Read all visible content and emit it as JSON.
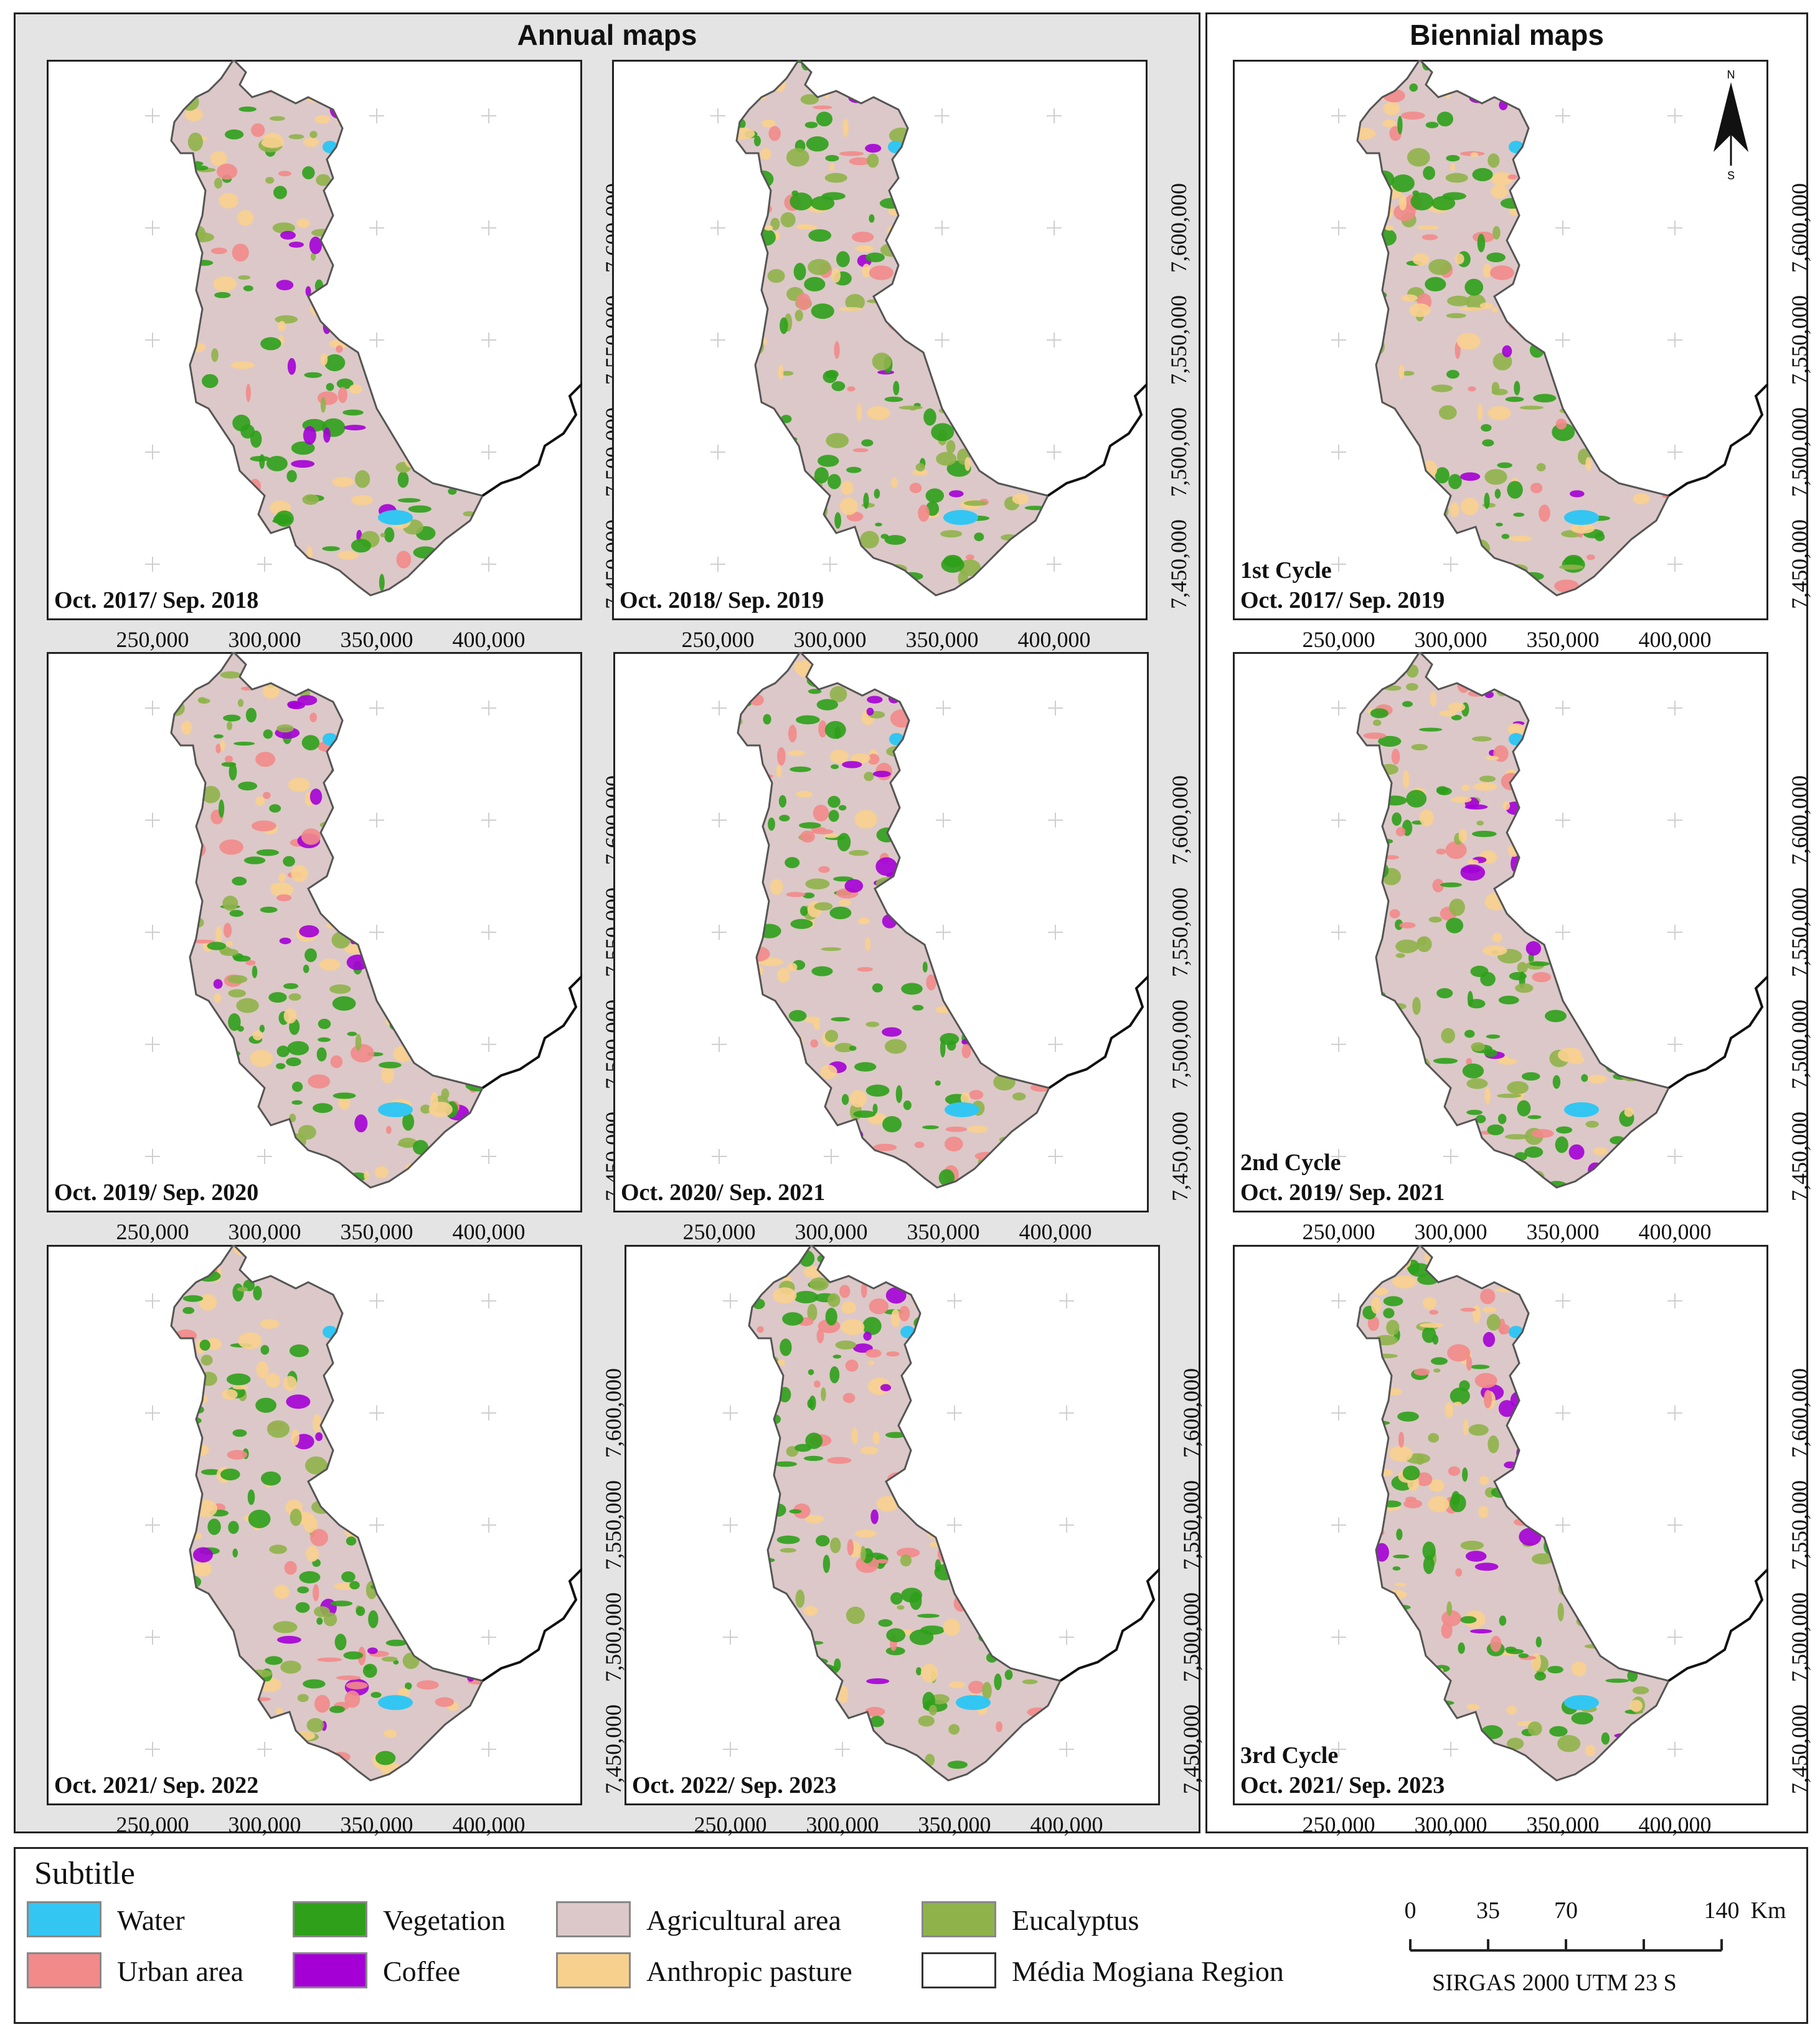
{
  "groups": {
    "annual_title": "Annual maps",
    "biennial_title": "Biennial maps"
  },
  "axes": {
    "x_ticks": [
      "250,000",
      "300,000",
      "350,000",
      "400,000"
    ],
    "y_ticks": [
      "7,450,000",
      "7,500,000",
      "7,550,000",
      "7,600,000"
    ]
  },
  "panels": [
    {
      "group": "annual",
      "lines": [
        "Oct. 2017/ Sep. 2018"
      ]
    },
    {
      "group": "annual",
      "lines": [
        "Oct. 2018/ Sep. 2019"
      ]
    },
    {
      "group": "annual",
      "lines": [
        "Oct. 2019/ Sep. 2020"
      ]
    },
    {
      "group": "annual",
      "lines": [
        "Oct. 2020/ Sep. 2021"
      ]
    },
    {
      "group": "annual",
      "lines": [
        "Oct. 2021/ Sep. 2022"
      ]
    },
    {
      "group": "annual",
      "lines": [
        "Oct. 2022/ Sep. 2023"
      ]
    },
    {
      "group": "biennial",
      "lines": [
        "1st Cycle",
        "Oct. 2017/ Sep. 2019"
      ]
    },
    {
      "group": "biennial",
      "lines": [
        "2nd Cycle",
        "Oct. 2019/ Sep. 2021"
      ]
    },
    {
      "group": "biennial",
      "lines": [
        "3rd Cycle",
        "Oct. 2021/ Sep. 2023"
      ]
    }
  ],
  "north_arrow": {
    "north": "N",
    "south": "S"
  },
  "legend": {
    "title": "Subtitle",
    "items": [
      {
        "label": "Water",
        "color": "#33c6f2"
      },
      {
        "label": "Urban area",
        "color": "#f28a8a"
      },
      {
        "label": "Vegetation",
        "color": "#2ea019"
      },
      {
        "label": "Coffee",
        "color": "#a400d6"
      },
      {
        "label": "Agricultural area",
        "color": "#dcc8c8"
      },
      {
        "label": "Anthropic pasture",
        "color": "#f8d08e"
      },
      {
        "label": "Eucalyptus",
        "color": "#8fb34a"
      },
      {
        "label": "Média Mogiana Region",
        "color": "#ffffff"
      }
    ]
  },
  "scalebar": {
    "ticks": [
      "0",
      "35",
      "70",
      "140"
    ],
    "unit": "Km",
    "projection": "SIRGAS 2000  UTM  23 S"
  }
}
